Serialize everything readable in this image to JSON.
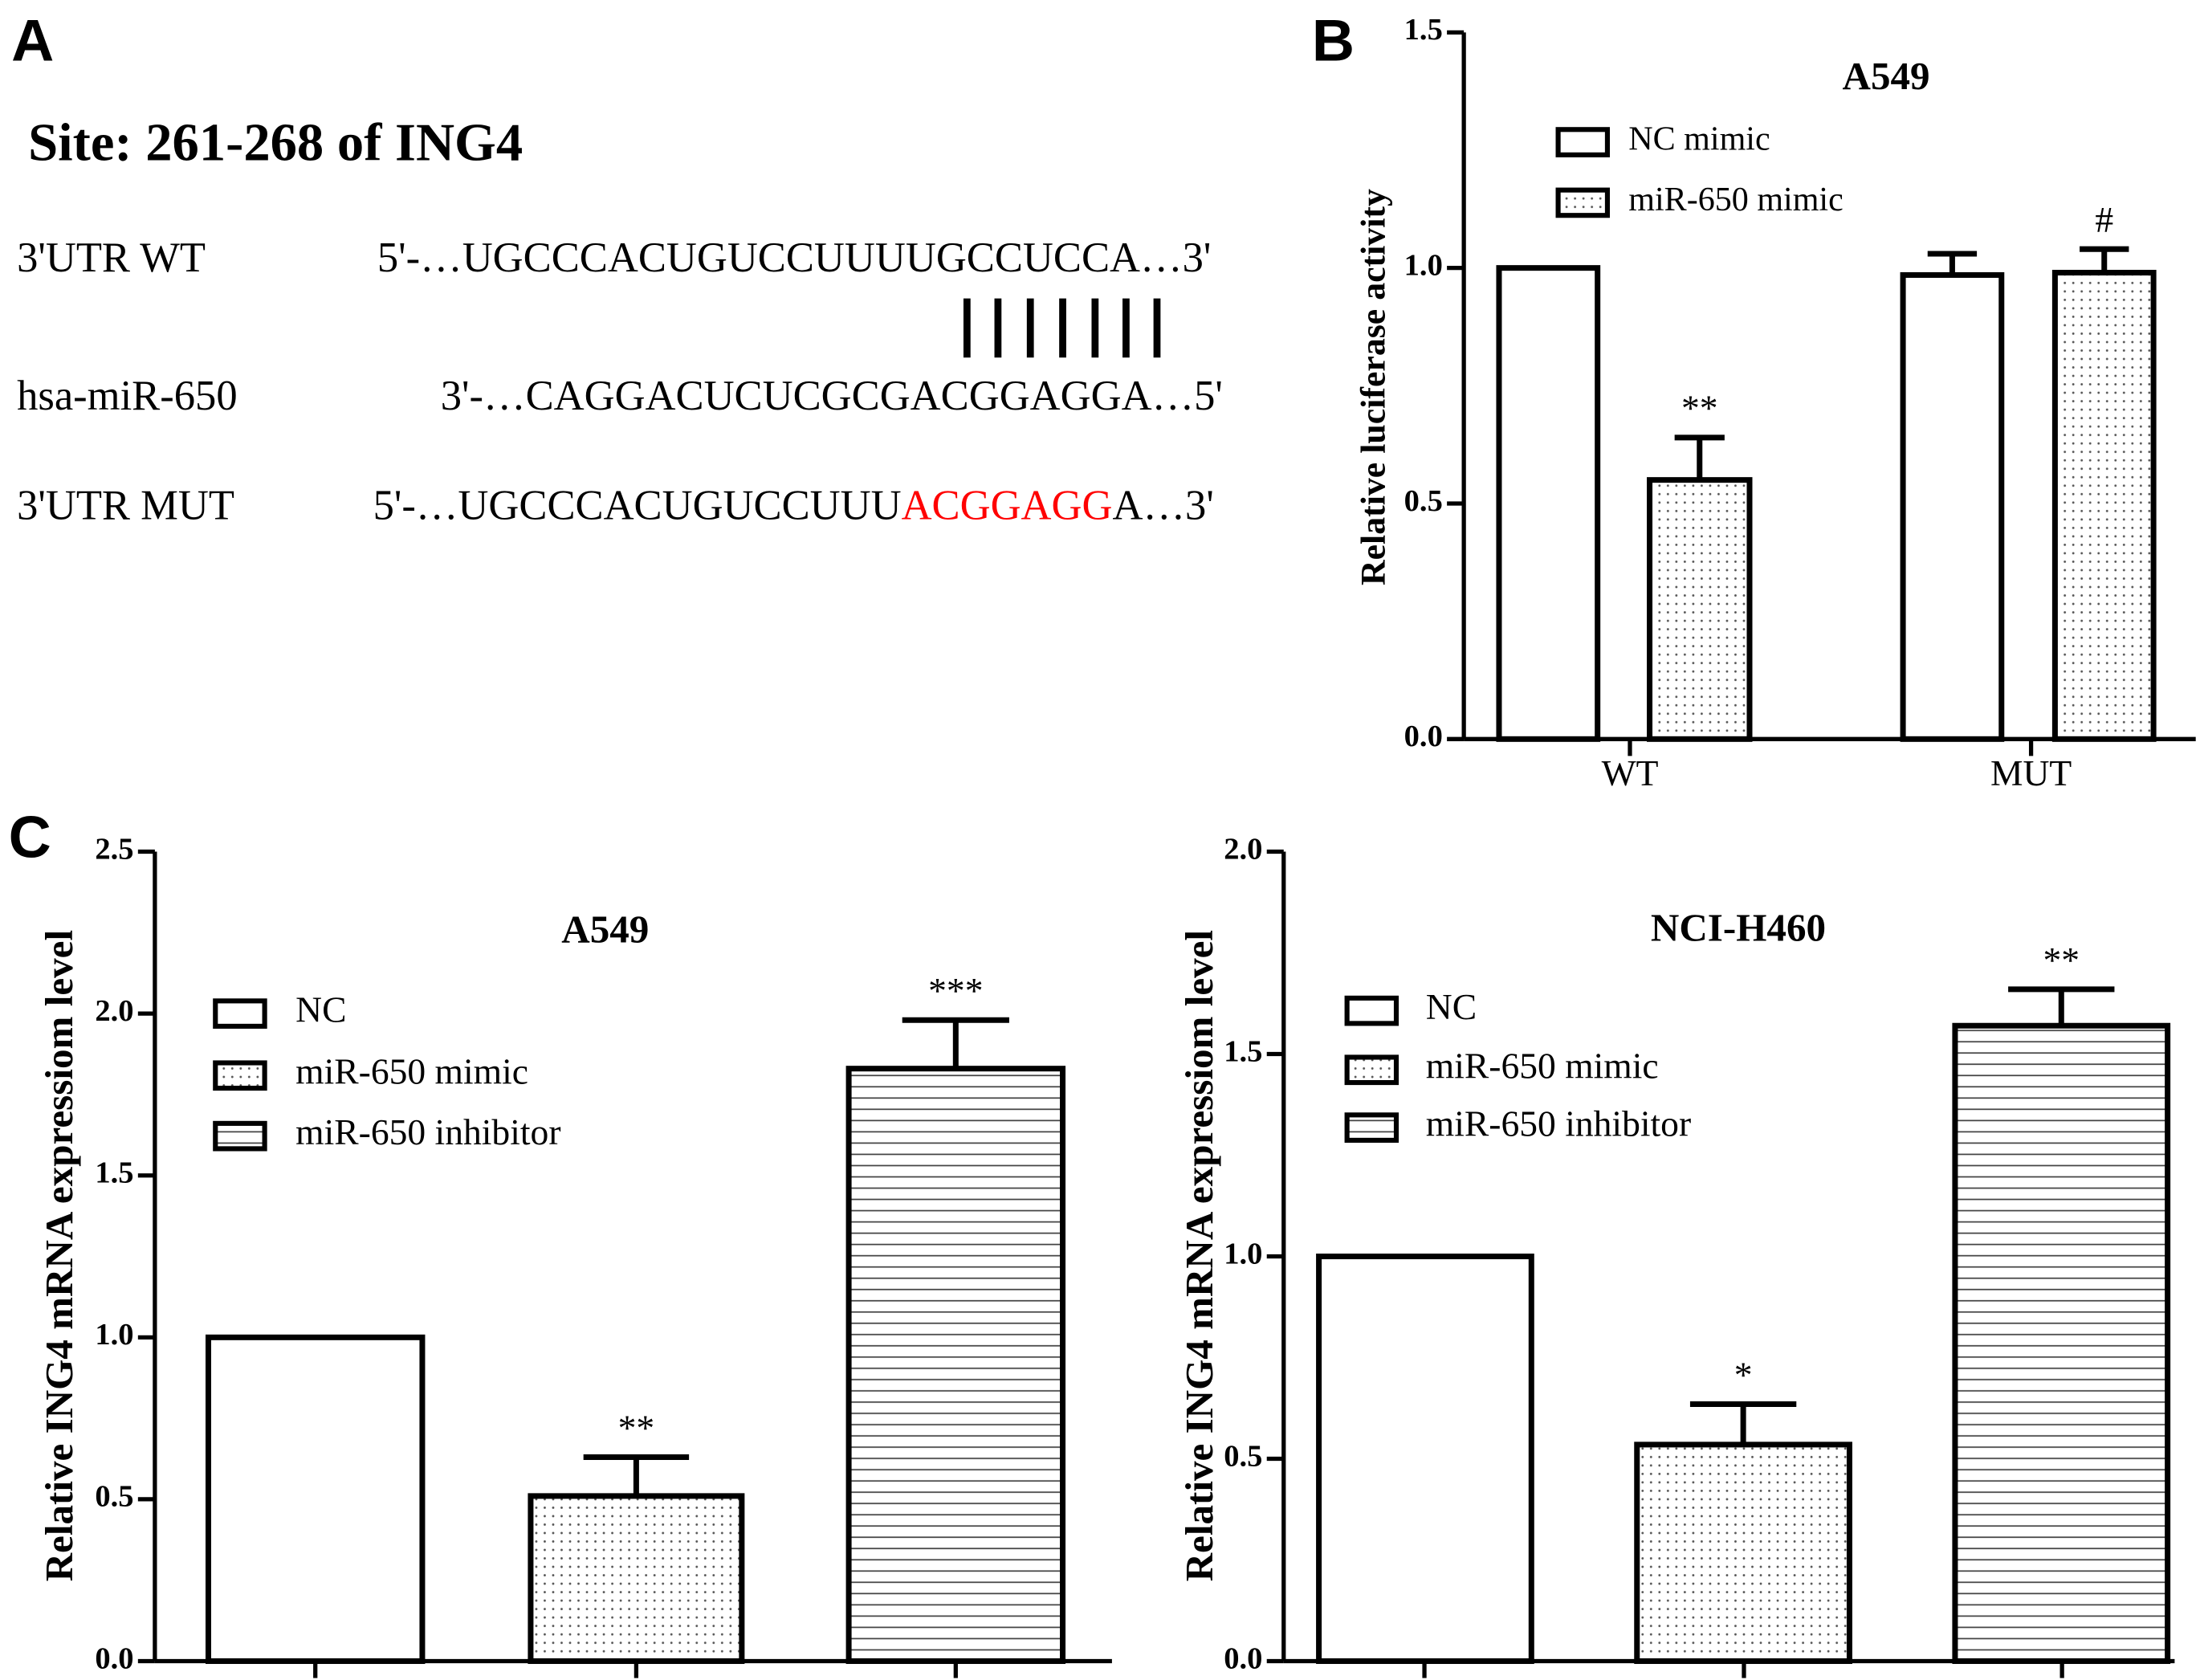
{
  "panel_labels": [
    "A",
    "B",
    "C"
  ],
  "panel_a": {
    "title": "Site: 261-268 of ING4",
    "rows": [
      {
        "label": "3'UTR WT",
        "sequence": [
          "5'-…UGCCCACUGUCCUUUUGCCUCCA…3'"
        ]
      },
      {
        "label": "hsa-miR-650",
        "sequence": [
          "3'-…CAGGACUCUCGCGACGGAGGA…5'"
        ]
      },
      {
        "label": "3'UTR MUT",
        "sequence": [
          "5'-…UGCCCACUGUCCUUU",
          "ACGGAGG",
          "A…3'"
        ],
        "highlight": 1,
        "highlight_color": "#ff0000"
      }
    ]
  },
  "chart_data": [
    {
      "type": "bar",
      "title": "A549",
      "ylabel": "Relative luciferase activity",
      "categories": [
        "WT",
        "MUT"
      ],
      "series": [
        {
          "name": "NC mimic",
          "pattern": "none",
          "values": [
            1.0,
            0.985
          ],
          "errors": [
            0,
            0.045
          ],
          "value_annotations": [
            null,
            null
          ]
        },
        {
          "name": "miR-650 mimic",
          "pattern": "dots",
          "values": [
            0.55,
            0.99
          ],
          "errors": [
            0.09,
            0.05
          ],
          "value_annotations": [
            "**",
            "#"
          ]
        }
      ],
      "ylim": [
        0,
        1.5
      ],
      "yticks": [
        {
          "value": 0,
          "label": "0.0"
        },
        {
          "value": 0.5,
          "label": "0.5"
        },
        {
          "value": 1,
          "label": "1.0"
        },
        {
          "value": 1.5,
          "label": "1.5"
        }
      ]
    },
    {
      "type": "bar",
      "title": "A549",
      "ylabel": "Relative ING4 mRNA expressiom level",
      "categories": [
        null
      ],
      "series": [
        {
          "name": "NC",
          "pattern": "none",
          "values": [
            1.0
          ],
          "errors": [
            0
          ],
          "value_annotations": [
            null
          ]
        },
        {
          "name": "miR-650 mimic",
          "pattern": "dots",
          "values": [
            0.51
          ],
          "errors": [
            0.12
          ],
          "value_annotations": [
            "**"
          ]
        },
        {
          "name": "miR-650 inhibitor",
          "pattern": "hlines",
          "values": [
            1.83
          ],
          "errors": [
            0.15
          ],
          "value_annotations": [
            "***"
          ]
        }
      ],
      "ylim": [
        0,
        2.5
      ],
      "yticks": [
        {
          "value": 0,
          "label": "0.0"
        },
        {
          "value": 0.5,
          "label": "0.5"
        },
        {
          "value": 1,
          "label": "1.0"
        },
        {
          "value": 1.5,
          "label": "1.5"
        },
        {
          "value": 2,
          "label": "2.0"
        },
        {
          "value": 2.5,
          "label": "2.5"
        }
      ]
    },
    {
      "type": "bar",
      "title": "NCI-H460",
      "ylabel": "Relative ING4 mRNA expressiom level",
      "categories": [
        null
      ],
      "series": [
        {
          "name": "NC",
          "pattern": "none",
          "values": [
            1.0
          ],
          "errors": [
            0
          ],
          "value_annotations": [
            null
          ]
        },
        {
          "name": "miR-650 mimic",
          "pattern": "dots",
          "values": [
            0.535
          ],
          "errors": [
            0.1
          ],
          "value_annotations": [
            "*"
          ]
        },
        {
          "name": "miR-650 inhibitor",
          "pattern": "hlines",
          "values": [
            1.57
          ],
          "errors": [
            0.09
          ],
          "value_annotations": [
            "**"
          ]
        }
      ],
      "ylim": [
        0,
        2
      ],
      "yticks": [
        {
          "value": 0,
          "label": "0.0"
        },
        {
          "value": 0.5,
          "label": "0.5"
        },
        {
          "value": 1,
          "label": "1.0"
        },
        {
          "value": 1.5,
          "label": "1.5"
        },
        {
          "value": 2,
          "label": "2.0"
        }
      ]
    }
  ]
}
